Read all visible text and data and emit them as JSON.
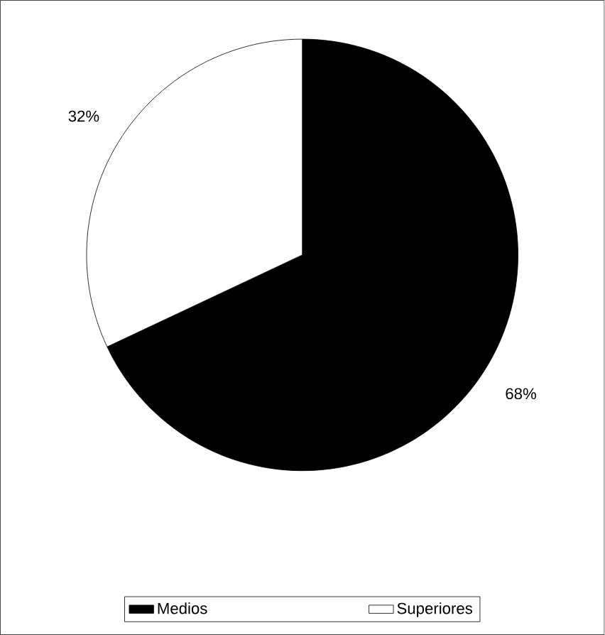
{
  "chart_data": {
    "type": "pie",
    "categories": [
      "Medios",
      "Superiores"
    ],
    "values": [
      68,
      32
    ],
    "colors": [
      "#000000",
      "#ffffff"
    ],
    "value_labels": [
      "68%",
      "32%"
    ],
    "legend": "bottom"
  }
}
